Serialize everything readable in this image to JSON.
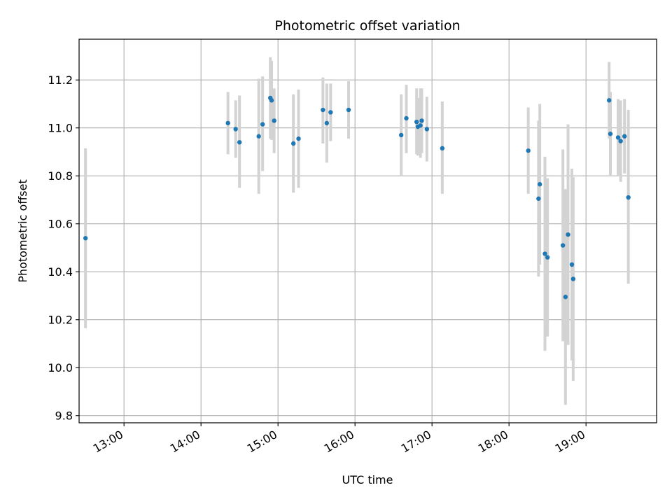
{
  "chart_data": {
    "type": "scatter",
    "title": "Photometric offset variation",
    "xlabel": "UTC time",
    "ylabel": "Photometric offset",
    "x_axis_type": "time",
    "xlim": [
      "12:25",
      "19:55"
    ],
    "ylim": [
      9.77,
      11.37
    ],
    "x_ticks": [
      "13:00",
      "14:00",
      "15:00",
      "16:00",
      "17:00",
      "18:00",
      "19:00"
    ],
    "y_ticks": [
      9.8,
      10.0,
      10.2,
      10.4,
      10.6,
      10.8,
      11.0,
      11.2
    ],
    "y_tick_labels": [
      "9.8",
      "10.0",
      "10.2",
      "10.4",
      "10.6",
      "10.8",
      "11.0",
      "11.2"
    ],
    "grid": true,
    "legend": false,
    "point_color": "#1f77b4",
    "errorbar_color": "#d3d3d3",
    "points": [
      {
        "t": "12:30",
        "y": 10.54,
        "lo": 10.165,
        "hi": 10.915
      },
      {
        "t": "14:21",
        "y": 11.02,
        "lo": 10.89,
        "hi": 11.15
      },
      {
        "t": "14:27",
        "y": 10.995,
        "lo": 10.875,
        "hi": 11.115
      },
      {
        "t": "14:30",
        "y": 10.94,
        "lo": 10.75,
        "hi": 11.135
      },
      {
        "t": "14:45",
        "y": 10.965,
        "lo": 10.725,
        "hi": 11.205
      },
      {
        "t": "14:48",
        "y": 11.015,
        "lo": 10.82,
        "hi": 11.215
      },
      {
        "t": "14:54",
        "y": 11.125,
        "lo": 10.955,
        "hi": 11.295
      },
      {
        "t": "14:55",
        "y": 11.115,
        "lo": 10.95,
        "hi": 11.28
      },
      {
        "t": "14:57",
        "y": 11.03,
        "lo": 10.895,
        "hi": 11.165
      },
      {
        "t": "15:12",
        "y": 10.935,
        "lo": 10.73,
        "hi": 11.14
      },
      {
        "t": "15:16",
        "y": 10.955,
        "lo": 10.75,
        "hi": 11.16
      },
      {
        "t": "15:35",
        "y": 11.075,
        "lo": 10.935,
        "hi": 11.21
      },
      {
        "t": "15:38",
        "y": 11.02,
        "lo": 10.855,
        "hi": 11.185
      },
      {
        "t": "15:41",
        "y": 11.065,
        "lo": 10.945,
        "hi": 11.185
      },
      {
        "t": "15:55",
        "y": 11.075,
        "lo": 10.955,
        "hi": 11.195
      },
      {
        "t": "16:36",
        "y": 10.97,
        "lo": 10.8,
        "hi": 11.14
      },
      {
        "t": "16:40",
        "y": 11.04,
        "lo": 10.895,
        "hi": 11.18
      },
      {
        "t": "16:48",
        "y": 11.025,
        "lo": 10.89,
        "hi": 11.165
      },
      {
        "t": "16:49",
        "y": 11.005,
        "lo": 10.885,
        "hi": 11.125
      },
      {
        "t": "16:51",
        "y": 11.01,
        "lo": 10.875,
        "hi": 11.165
      },
      {
        "t": "16:52",
        "y": 11.03,
        "lo": 10.895,
        "hi": 11.165
      },
      {
        "t": "16:56",
        "y": 10.995,
        "lo": 10.86,
        "hi": 11.13
      },
      {
        "t": "17:08",
        "y": 10.915,
        "lo": 10.725,
        "hi": 11.11
      },
      {
        "t": "18:15",
        "y": 10.905,
        "lo": 10.725,
        "hi": 11.085
      },
      {
        "t": "18:23",
        "y": 10.705,
        "lo": 10.38,
        "hi": 11.03
      },
      {
        "t": "18:24",
        "y": 10.765,
        "lo": 10.43,
        "hi": 11.1
      },
      {
        "t": "18:28",
        "y": 10.475,
        "lo": 10.07,
        "hi": 10.88
      },
      {
        "t": "18:30",
        "y": 10.46,
        "lo": 10.13,
        "hi": 10.79
      },
      {
        "t": "18:42",
        "y": 10.51,
        "lo": 10.11,
        "hi": 10.91
      },
      {
        "t": "18:44",
        "y": 10.295,
        "lo": 9.845,
        "hi": 10.745
      },
      {
        "t": "18:46",
        "y": 10.555,
        "lo": 10.095,
        "hi": 11.015
      },
      {
        "t": "18:49",
        "y": 10.43,
        "lo": 10.03,
        "hi": 10.83
      },
      {
        "t": "18:50",
        "y": 10.37,
        "lo": 9.945,
        "hi": 10.795
      },
      {
        "t": "19:18",
        "y": 11.115,
        "lo": 10.955,
        "hi": 11.275
      },
      {
        "t": "19:19",
        "y": 10.975,
        "lo": 10.8,
        "hi": 11.15
      },
      {
        "t": "19:25",
        "y": 10.96,
        "lo": 10.8,
        "hi": 11.12
      },
      {
        "t": "19:27",
        "y": 10.945,
        "lo": 10.775,
        "hi": 11.115
      },
      {
        "t": "19:30",
        "y": 10.965,
        "lo": 10.81,
        "hi": 11.12
      },
      {
        "t": "19:33",
        "y": 10.71,
        "lo": 10.35,
        "hi": 11.075
      }
    ]
  }
}
